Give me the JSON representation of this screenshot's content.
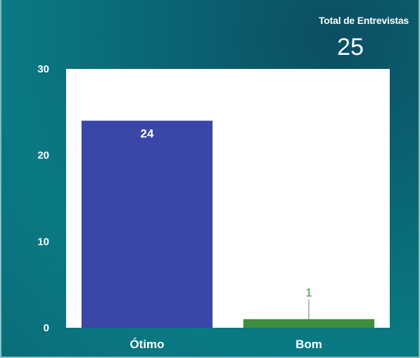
{
  "header": {
    "total_label": "Total de Entrevistas",
    "total_value": "25"
  },
  "chart_data": {
    "type": "bar",
    "categories": [
      "Ótimo",
      "Bom"
    ],
    "values": [
      24,
      1
    ],
    "colors": [
      "#3a46a8",
      "#3e8e3e"
    ],
    "ylim": [
      0,
      30
    ],
    "yticks": [
      0,
      10,
      20,
      30
    ],
    "grid": false,
    "plot_background": "#ffffff"
  }
}
